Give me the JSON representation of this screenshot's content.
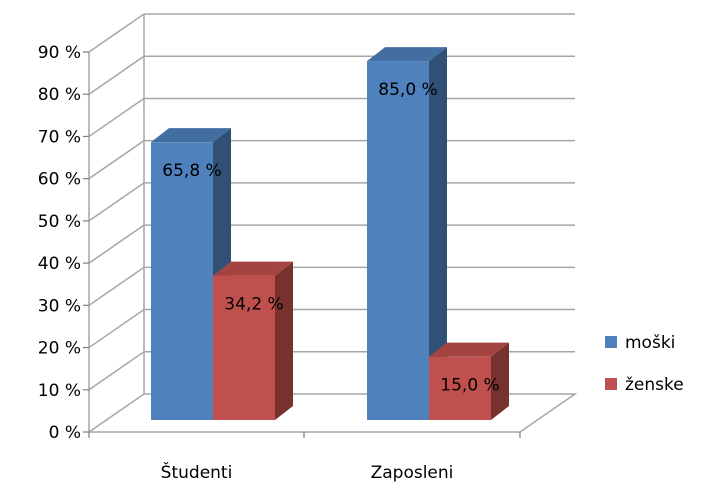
{
  "chart_data": {
    "type": "bar",
    "categories": [
      "Študenti",
      "Zaposleni"
    ],
    "series": [
      {
        "name": "moški",
        "values": [
          65.8,
          85.0
        ],
        "labels": [
          "65,8 %",
          "85,0 %"
        ],
        "color": "#4f81bd"
      },
      {
        "name": "ženske",
        "values": [
          34.2,
          15.0
        ],
        "labels": [
          "34,2 %",
          "15,0 %"
        ],
        "color": "#c0504d"
      }
    ],
    "ylim": [
      0,
      90
    ],
    "ytick_labels": [
      "0 %",
      "10 %",
      "20 %",
      "30 %",
      "40 %",
      "50 %",
      "60 %",
      "70 %",
      "80 %",
      "90 %"
    ],
    "grid": true,
    "legend_position": "right",
    "three_d": true
  }
}
